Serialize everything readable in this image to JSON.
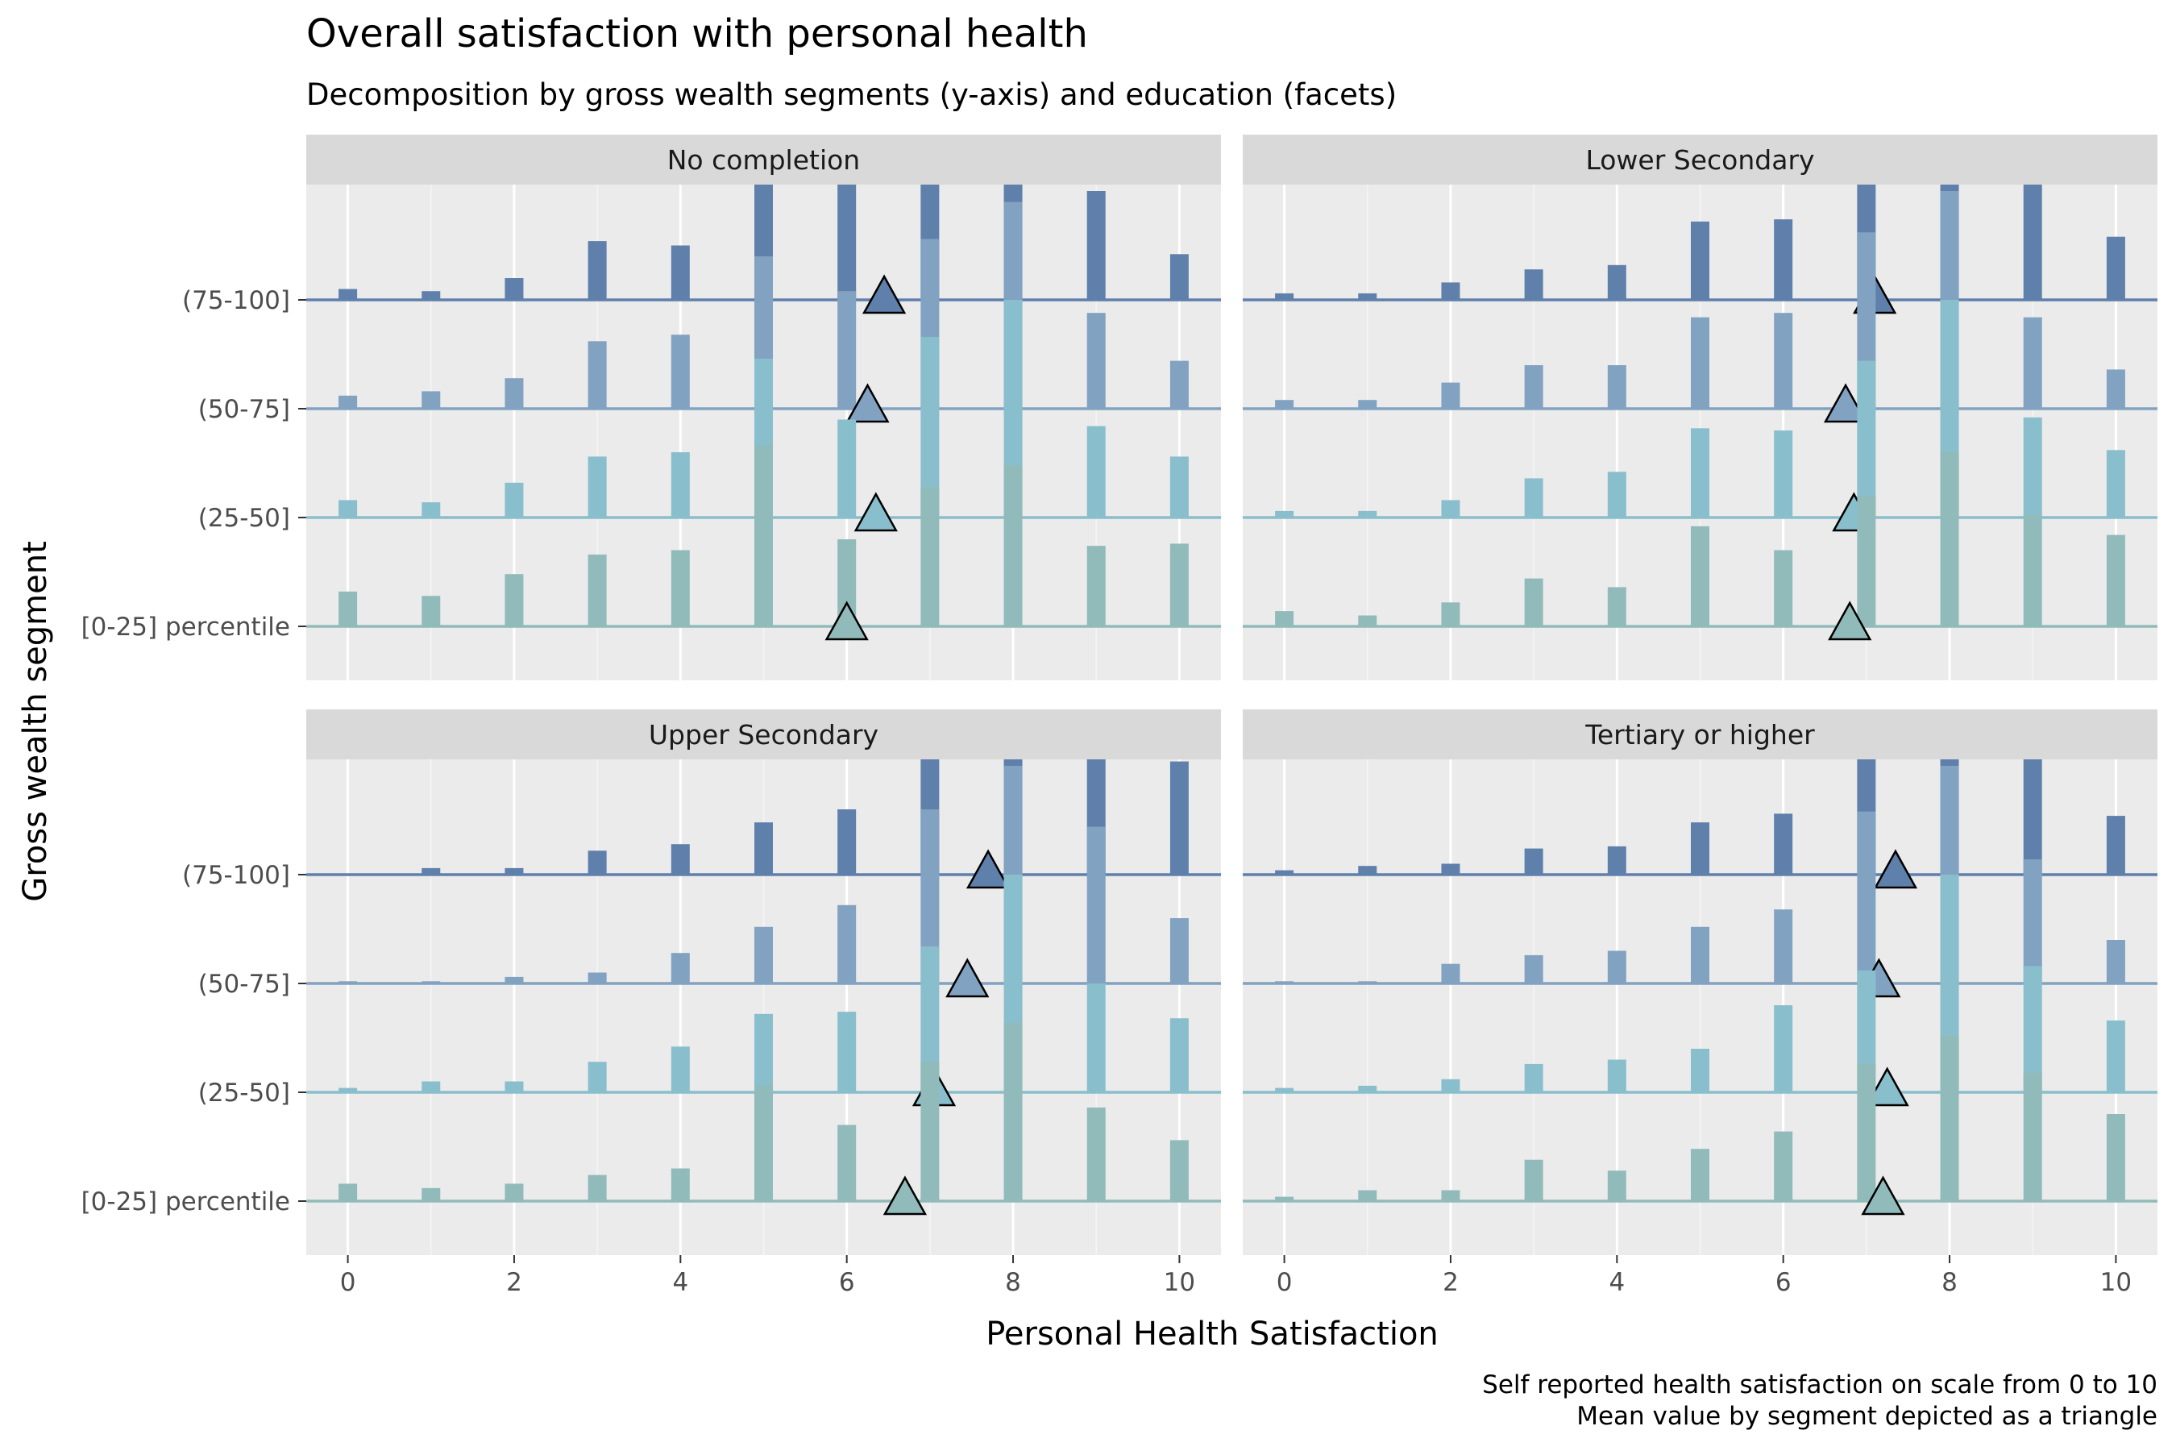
{
  "chart_data": {
    "type": "bar",
    "title": "Overall satisfaction with personal health",
    "subtitle": "Decomposition by gross wealth segments (y-axis) and education (facets)",
    "xlabel": "Personal Health Satisfaction",
    "ylabel": "Gross wealth segment",
    "caption": [
      "Self reported health satisfaction on scale from 0 to 10",
      "Mean value by segment depicted as a triangle"
    ],
    "x_ticks": [
      0,
      2,
      4,
      6,
      8,
      10
    ],
    "xlim": [
      -0.5,
      10.5
    ],
    "x": [
      0,
      1,
      2,
      3,
      4,
      5,
      6,
      7,
      8,
      9,
      10
    ],
    "segments": [
      "[0-25] percentile",
      "(25-50]",
      "(50-75]",
      "(75-100]"
    ],
    "segment_colors": [
      "#91BBBA",
      "#89BFCD",
      "#82A2C2",
      "#5F80AB"
    ],
    "value_unit": "relative bar height (0-1, bars share one scale)",
    "facets": [
      {
        "name": "No completion",
        "series": [
          {
            "segment": "[0-25] percentile",
            "values": [
              0.16,
              0.14,
              0.24,
              0.33,
              0.35,
              0.83,
              0.4,
              0.64,
              0.74,
              0.37,
              0.38
            ],
            "mean": 6.0
          },
          {
            "segment": "(25-50]",
            "values": [
              0.08,
              0.07,
              0.16,
              0.28,
              0.3,
              0.73,
              0.45,
              0.83,
              1.0,
              0.42,
              0.28
            ],
            "mean": 6.35
          },
          {
            "segment": "(50-75]",
            "values": [
              0.06,
              0.08,
              0.14,
              0.31,
              0.34,
              0.7,
              0.54,
              0.78,
              0.95,
              0.44,
              0.22
            ],
            "mean": 6.25
          },
          {
            "segment": "(75-100]",
            "values": [
              0.05,
              0.04,
              0.1,
              0.27,
              0.25,
              0.72,
              0.56,
              0.87,
              0.97,
              0.5,
              0.21
            ],
            "mean": 6.45
          }
        ]
      },
      {
        "name": "Lower Secondary",
        "series": [
          {
            "segment": "[0-25] percentile",
            "values": [
              0.07,
              0.05,
              0.11,
              0.22,
              0.18,
              0.46,
              0.35,
              0.6,
              0.8,
              0.51,
              0.42
            ],
            "mean": 6.8
          },
          {
            "segment": "(25-50]",
            "values": [
              0.03,
              0.03,
              0.08,
              0.18,
              0.21,
              0.41,
              0.4,
              0.72,
              1.0,
              0.46,
              0.31
            ],
            "mean": 6.85
          },
          {
            "segment": "(50-75]",
            "values": [
              0.04,
              0.04,
              0.12,
              0.2,
              0.2,
              0.42,
              0.44,
              0.81,
              1.0,
              0.42,
              0.18
            ],
            "mean": 6.75
          },
          {
            "segment": "(75-100]",
            "values": [
              0.03,
              0.03,
              0.08,
              0.14,
              0.16,
              0.36,
              0.37,
              0.74,
              1.0,
              0.57,
              0.29
            ],
            "mean": 7.1
          }
        ]
      },
      {
        "name": "Upper Secondary",
        "series": [
          {
            "segment": "[0-25] percentile",
            "values": [
              0.08,
              0.06,
              0.08,
              0.12,
              0.15,
              0.53,
              0.35,
              0.64,
              0.82,
              0.43,
              0.28
            ],
            "mean": 6.7
          },
          {
            "segment": "(25-50]",
            "values": [
              0.02,
              0.05,
              0.05,
              0.14,
              0.21,
              0.36,
              0.37,
              0.67,
              1.0,
              0.5,
              0.34
            ],
            "mean": 7.05
          },
          {
            "segment": "(50-75]",
            "values": [
              0.01,
              0.01,
              0.03,
              0.05,
              0.14,
              0.26,
              0.36,
              0.8,
              1.0,
              0.72,
              0.3
            ],
            "mean": 7.45
          },
          {
            "segment": "(75-100]",
            "values": [
              0.0,
              0.03,
              0.03,
              0.11,
              0.14,
              0.24,
              0.3,
              0.62,
              1.0,
              0.73,
              0.52
            ],
            "mean": 7.7
          }
        ]
      },
      {
        "name": "Tertiary or higher",
        "series": [
          {
            "segment": "[0-25] percentile",
            "values": [
              0.02,
              0.05,
              0.05,
              0.19,
              0.14,
              0.24,
              0.32,
              0.63,
              0.76,
              0.59,
              0.4
            ],
            "mean": 7.2
          },
          {
            "segment": "(25-50]",
            "values": [
              0.02,
              0.03,
              0.06,
              0.13,
              0.15,
              0.2,
              0.4,
              0.56,
              1.0,
              0.58,
              0.33
            ],
            "mean": 7.25
          },
          {
            "segment": "(50-75]",
            "values": [
              0.01,
              0.01,
              0.09,
              0.13,
              0.15,
              0.26,
              0.34,
              0.79,
              1.0,
              0.57,
              0.2
            ],
            "mean": 7.15
          },
          {
            "segment": "(75-100]",
            "values": [
              0.02,
              0.04,
              0.05,
              0.12,
              0.13,
              0.24,
              0.28,
              0.66,
              1.0,
              0.64,
              0.27
            ],
            "mean": 7.35
          }
        ]
      }
    ]
  }
}
